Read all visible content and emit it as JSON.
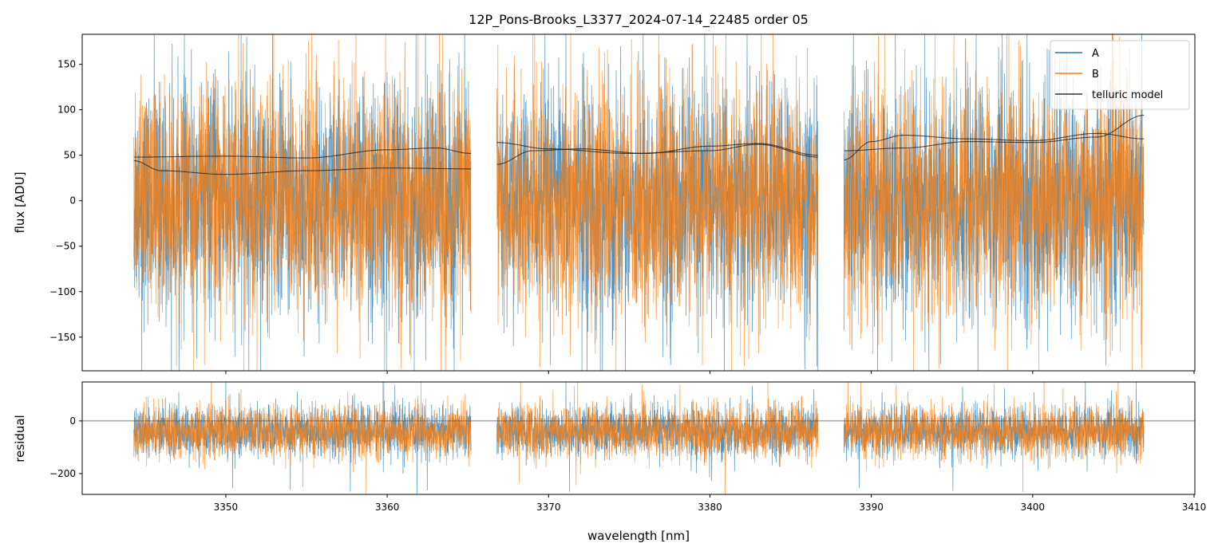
{
  "chart_data": [
    {
      "type": "line",
      "title": "12P_Pons-Brooks_L3377_2024-07-14_22485  order 05",
      "xlabel": "",
      "ylabel": "flux [ADU]",
      "xlim": [
        3341.1,
        3410.05
      ],
      "ylim": [
        -187,
        183
      ],
      "yticks": [
        -150,
        -100,
        -50,
        0,
        50,
        100,
        150
      ],
      "xticks": [
        3350,
        3360,
        3370,
        3380,
        3390,
        3400,
        3410
      ],
      "xtick_labels_shown": false,
      "grid": false,
      "legend": "top-right",
      "segments": [
        [
          3344.3,
          3365.2
        ],
        [
          3366.8,
          3386.7
        ],
        [
          3388.3,
          3406.9
        ]
      ],
      "series": [
        {
          "name": "A",
          "color": "#1f77b4",
          "center": 0,
          "spread": 60
        },
        {
          "name": "B",
          "color": "#ff7f0e",
          "center": 0,
          "spread": 62
        },
        {
          "name": "telluric model",
          "color": "#333333",
          "curves": [
            [
              [
                3344.3,
                48
              ],
              [
                3350,
                49
              ],
              [
                3355,
                47
              ],
              [
                3360,
                56
              ],
              [
                3363,
                58
              ],
              [
                3365.2,
                52
              ]
            ],
            [
              [
                3344.3,
                44
              ],
              [
                3346,
                33
              ],
              [
                3350,
                29
              ],
              [
                3355,
                33
              ],
              [
                3360,
                36
              ],
              [
                3365.2,
                35
              ]
            ],
            [
              [
                3366.8,
                64
              ],
              [
                3370,
                57
              ],
              [
                3375,
                52
              ],
              [
                3380,
                55
              ],
              [
                3383,
                62
              ],
              [
                3386.7,
                48
              ]
            ],
            [
              [
                3366.8,
                40
              ],
              [
                3369,
                55
              ],
              [
                3372,
                57
              ],
              [
                3376,
                52
              ],
              [
                3380,
                60
              ],
              [
                3383,
                63
              ],
              [
                3386.7,
                50
              ]
            ],
            [
              [
                3388.3,
                55
              ],
              [
                3392,
                58
              ],
              [
                3396,
                65
              ],
              [
                3400,
                64
              ],
              [
                3404,
                70
              ],
              [
                3406.9,
                94
              ]
            ],
            [
              [
                3388.3,
                45
              ],
              [
                3390,
                65
              ],
              [
                3392,
                72
              ],
              [
                3396,
                68
              ],
              [
                3400,
                66
              ],
              [
                3404,
                74
              ],
              [
                3406.9,
                68
              ]
            ]
          ]
        }
      ]
    },
    {
      "type": "line",
      "xlabel": "wavelength [nm]",
      "ylabel": "residual",
      "xlim": [
        3341.1,
        3410.05
      ],
      "ylim": [
        -279,
        148
      ],
      "yticks": [
        -200,
        0
      ],
      "xticks": [
        3350,
        3360,
        3370,
        3380,
        3390,
        3400,
        3410
      ],
      "hline": 0,
      "grid": false,
      "series": [
        {
          "name": "A",
          "color": "#1f77b4",
          "center": -40,
          "spread": 45
        },
        {
          "name": "B",
          "color": "#ff7f0e",
          "center": -40,
          "spread": 48
        }
      ]
    }
  ]
}
